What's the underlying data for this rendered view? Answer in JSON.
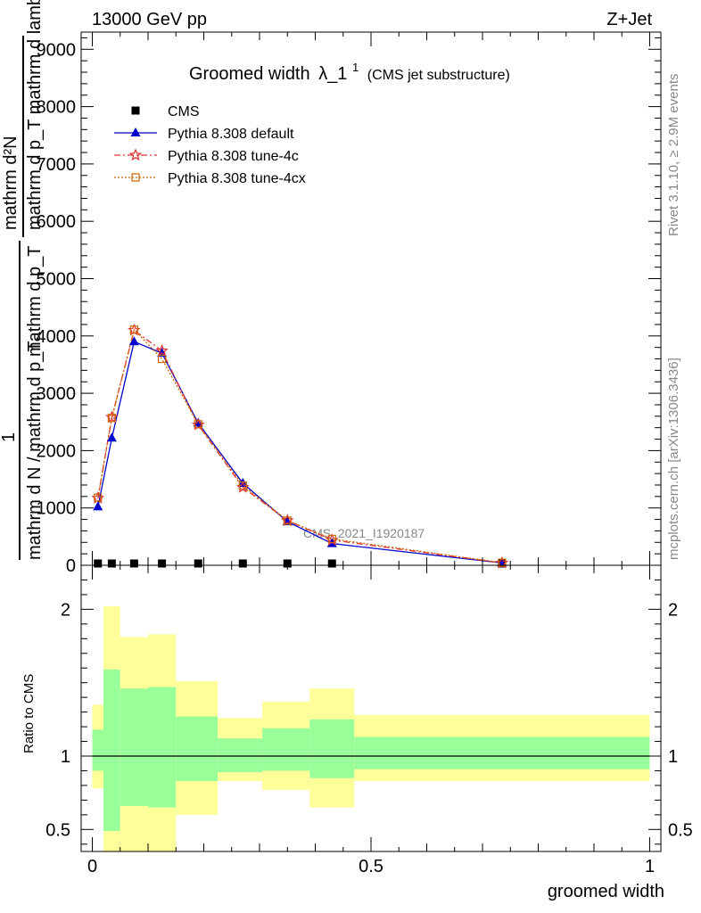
{
  "header": {
    "left": "13000 GeV pp",
    "right": "Z+Jet"
  },
  "title": {
    "main": "Groomed width",
    "symbol": "λ_1",
    "superscript": "1",
    "sub": "(CMS jet substructure)"
  },
  "side_text": {
    "rivet": "Rivet 3.1.10, ≥ 2.9M events",
    "mcplots": "mcplots.cern.ch [arXiv:1306.3436]"
  },
  "watermark": "CMS_2021_I1920187",
  "ylabel_main": {
    "numerator_top": "mathrm d²N",
    "numerator_bottom": "mathrm d p_T mathrm d lambda",
    "one": "1",
    "denominator_top": "mathrm d N / mathrm d p_T",
    "denominator_bottom": "mathrm d p_T"
  },
  "chart_data": [
    {
      "type": "line",
      "panel": "main",
      "xlim": [
        -0.02,
        1.02
      ],
      "ylim": [
        0,
        9300
      ],
      "yticks": [
        0,
        1000,
        2000,
        3000,
        4000,
        5000,
        6000,
        7000,
        8000,
        9000
      ],
      "ytick_labels": [
        "0",
        "1000",
        "2000",
        "3000",
        "4000",
        "5000",
        "6000",
        "7000",
        "8000",
        "9000"
      ],
      "legend_position": "top-left",
      "x": [
        0.01,
        0.035,
        0.075,
        0.125,
        0.19,
        0.27,
        0.35,
        0.43,
        0.735
      ],
      "series": [
        {
          "name": "CMS",
          "color": "#000000",
          "marker": "square",
          "values": [
            0,
            0,
            0,
            0,
            0,
            0,
            0,
            0,
            0
          ]
        },
        {
          "name": "Pythia 8.308 default",
          "color": "#0000cc",
          "marker": "triangle",
          "line": "solid",
          "values": [
            1020,
            2220,
            3900,
            3700,
            2480,
            1430,
            760,
            380,
            40
          ]
        },
        {
          "name": "Pythia 8.308 tune-4c",
          "color": "#e03030",
          "marker": "star",
          "line": "dashdot",
          "values": [
            1170,
            2580,
            4100,
            3740,
            2450,
            1360,
            780,
            440,
            40
          ]
        },
        {
          "name": "Pythia 8.308 tune-4cx",
          "color": "#cc6600",
          "marker": "open-square",
          "line": "dotted",
          "values": [
            1180,
            2570,
            4110,
            3600,
            2460,
            1390,
            780,
            460,
            45
          ]
        }
      ]
    },
    {
      "type": "area",
      "panel": "ratio",
      "ylabel": "Ratio to CMS",
      "xlabel": "groomed width",
      "xlim": [
        -0.02,
        1.02
      ],
      "ylim": [
        0.35,
        2.3
      ],
      "yticks": [
        0.5,
        1,
        2
      ],
      "ytick_labels": [
        "0.5",
        "1",
        "2"
      ],
      "xticks": [
        0,
        0.5,
        1
      ],
      "xtick_labels": [
        "0",
        "0.5",
        "1"
      ],
      "colors": {
        "inner": "#99ff99",
        "outer": "#ffff99"
      },
      "bins": [
        {
          "x0": 0.0,
          "x1": 0.02,
          "inner": [
            0.9,
            1.18
          ],
          "outer": [
            0.78,
            1.35
          ]
        },
        {
          "x0": 0.02,
          "x1": 0.05,
          "inner": [
            0.49,
            1.59
          ],
          "outer": [
            0.3,
            2.02
          ]
        },
        {
          "x0": 0.05,
          "x1": 0.1,
          "inner": [
            0.66,
            1.46
          ],
          "outer": [
            0.3,
            1.81
          ]
        },
        {
          "x0": 0.1,
          "x1": 0.15,
          "inner": [
            0.65,
            1.47
          ],
          "outer": [
            0.3,
            1.83
          ]
        },
        {
          "x0": 0.15,
          "x1": 0.225,
          "inner": [
            0.83,
            1.27
          ],
          "outer": [
            0.6,
            1.51
          ]
        },
        {
          "x0": 0.225,
          "x1": 0.305,
          "inner": [
            0.89,
            1.12
          ],
          "outer": [
            0.83,
            1.26
          ]
        },
        {
          "x0": 0.305,
          "x1": 0.39,
          "inner": [
            0.9,
            1.19
          ],
          "outer": [
            0.77,
            1.37
          ]
        },
        {
          "x0": 0.39,
          "x1": 0.47,
          "inner": [
            0.85,
            1.25
          ],
          "outer": [
            0.65,
            1.46
          ]
        },
        {
          "x0": 0.47,
          "x1": 1.0,
          "inner": [
            0.91,
            1.13
          ],
          "outer": [
            0.83,
            1.28
          ]
        }
      ],
      "reference_line": 1
    }
  ]
}
